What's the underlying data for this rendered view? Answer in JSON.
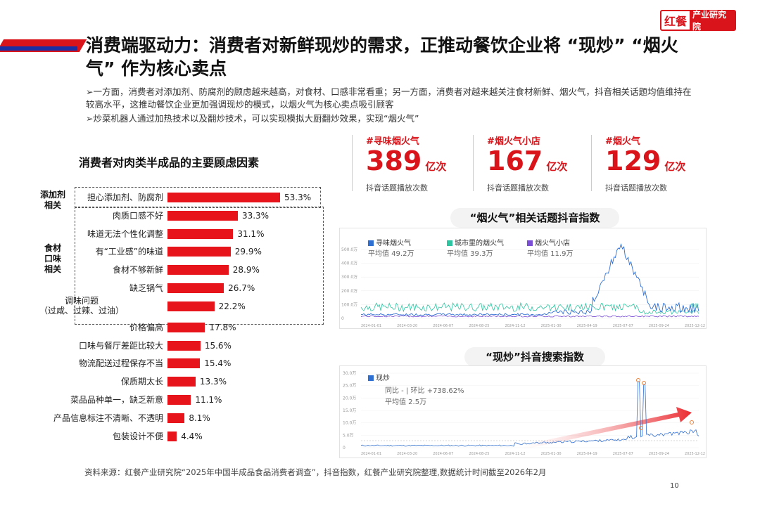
{
  "logo": {
    "mark": "红餐",
    "text": "产业研究院"
  },
  "title": "消费端驱动力：消费者对新鲜现炒的需求，正推动餐饮企业将 “现炒” “烟火气” 作为核心卖点",
  "bullets": [
    "➢一方面，消费者对添加剂、防腐剂的顾虑越来越高，对食材、口感非常看重；另一方面，消费者对越来越关注食材新鲜、烟火气，抖音相关话题均值维持在较高水平，这推动餐饮企业更加强调现炒的模式，以烟火气为核心卖点吸引顾客",
    "➢炒菜机器人通过加热技术以及翻炒技术，可以实现模拟大厨翻炒效果，实现“烟火气”"
  ],
  "bar_chart": {
    "title": "消费者对肉类半成品的主要顾虑因素",
    "group_labels": {
      "additive": "添加剂相关",
      "taste": "食材口味相关"
    },
    "items": [
      {
        "label": "担心添加剂、防腐剂",
        "value": 53.3,
        "display": "53.3%"
      },
      {
        "label": "肉质口感不好",
        "value": 33.3,
        "display": "33.3%"
      },
      {
        "label": "味道无法个性化调整",
        "value": 31.1,
        "display": "31.1%"
      },
      {
        "label": "有“工业感”的味道",
        "value": 29.9,
        "display": "29.9%"
      },
      {
        "label": "食材不够新鲜",
        "value": 28.9,
        "display": "28.9%"
      },
      {
        "label": "缺乏锅气",
        "value": 26.7,
        "display": "26.7%"
      },
      {
        "label": "调味问题（过咸、过辣、过油）",
        "value": 22.2,
        "display": "22.2%"
      },
      {
        "label": "价格偏高",
        "value": 17.8,
        "display": "17.8%"
      },
      {
        "label": "口味与餐厅差距比较大",
        "value": 15.6,
        "display": "15.6%"
      },
      {
        "label": "物流配送过程保存不当",
        "value": 15.4,
        "display": "15.4%"
      },
      {
        "label": "保质期太长",
        "value": 13.3,
        "display": "13.3%"
      },
      {
        "label": "菜品品种单一，缺乏新意",
        "value": 11.1,
        "display": "11.1%"
      },
      {
        "label": "产品信息标注不清晰、不透明",
        "value": 8.1,
        "display": "8.1%"
      },
      {
        "label": "包装设计不便",
        "value": 4.4,
        "display": "4.4%"
      }
    ]
  },
  "stats": [
    {
      "tag": "#寻味烟火气",
      "number": "389",
      "unit": "亿次",
      "desc": "抖音话题播放次数"
    },
    {
      "tag": "#烟火气小店",
      "number": "167",
      "unit": "亿次",
      "desc": "抖音话题播放次数"
    },
    {
      "tag": "#烟火气",
      "number": "129",
      "unit": "亿次",
      "desc": "抖音话题播放次数"
    }
  ],
  "chart1": {
    "title": "“烟火气”相关话题抖音指数",
    "legend": [
      {
        "name": "寻味烟火气",
        "avg": "平均值 49.2万",
        "color": "#2f6fd1"
      },
      {
        "name": "城市里的烟火气",
        "avg": "平均值 39.3万",
        "color": "#2ec4a0"
      },
      {
        "name": "烟火气小店",
        "avg": "平均值 11.9万",
        "color": "#7a4fd6"
      }
    ],
    "yticks": [
      "500.0万",
      "400.0万",
      "300.0万",
      "200.0万",
      "100.0万",
      "0"
    ],
    "xticks": [
      "2024-01-01",
      "2024-03-20",
      "2024-06-07",
      "2024-08-25",
      "2024-11-12",
      "2025-01-30",
      "2025-04-19",
      "2025-07-07",
      "2025-09-24",
      "2025-12-12"
    ],
    "end_label": "均值"
  },
  "chart2": {
    "title": "“现炒”抖音搜索指数",
    "legend": [
      {
        "name": "现炒",
        "color": "#2f6fd1"
      }
    ],
    "yoy": "同比 - | 环比 +738.62%",
    "avg": "平均值 2.5万",
    "yticks": [
      "30.0万",
      "25.0万",
      "20.0万",
      "15.0万",
      "10.0万",
      "5.0万",
      "0"
    ],
    "xticks": [
      "2024-01-01",
      "2024-03-20",
      "2024-06-07",
      "2024-08-25",
      "2024-11-12",
      "2025-01-30",
      "2025-04-19",
      "2025-07-07",
      "2025-09-24",
      "2025-12-12"
    ]
  },
  "source": "资料来源：红餐产业研究院“2025年中国半成品食品消费者调查”，抖音指数，红餐产业研究院整理,数据统计时间截至2026年2月",
  "page_number": "10"
}
